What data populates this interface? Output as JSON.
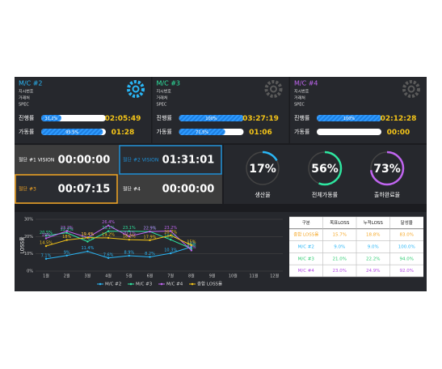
{
  "machines": [
    {
      "name": "M/C #2",
      "color": "#29b6f6",
      "icon_color": "#29b6f6",
      "info": [
        "지시번호",
        "거래처",
        "SPEC"
      ],
      "progress_label": "진행률",
      "progress": 31.2,
      "progress_text": "31.2%",
      "progress_time": "02:05:49",
      "uptime_label": "가동률",
      "uptime": 95.5,
      "uptime_text": "95.5%",
      "uptime_time": "01:28"
    },
    {
      "name": "M/C #3",
      "color": "#2ee6a0",
      "icon_color": "#5a5a5a",
      "info": [
        "지시번호",
        "거래처",
        "SPEC"
      ],
      "progress_label": "진행률",
      "progress": 100,
      "progress_text": "100%",
      "progress_time": "03:27:19",
      "uptime_label": "가동률",
      "uptime": 71.5,
      "uptime_text": "71.5%",
      "uptime_time": "01:06"
    },
    {
      "name": "M/C #4",
      "color": "#c065f0",
      "icon_color": "#5a5a5a",
      "info": [
        "지시번호",
        "거래처",
        "SPEC"
      ],
      "progress_label": "진행률",
      "progress": 100,
      "progress_text": "100%",
      "progress_time": "02:12:28",
      "uptime_label": "가동률",
      "uptime": 0,
      "uptime_time": "00:00"
    }
  ],
  "cutters": [
    {
      "label": "절단 #1 VISION",
      "time": "00:00:00"
    },
    {
      "label": "절단 #2 VISION",
      "time": "01:31:01",
      "border": "#1e8fd6"
    },
    {
      "label": "절단 #3",
      "time": "00:07:15",
      "border": "#f5a623"
    },
    {
      "label": "절단 #4",
      "time": "00:00:00"
    }
  ],
  "gauges": [
    {
      "value": 17,
      "label": "17%",
      "name": "생산율",
      "color": "#29b6f6"
    },
    {
      "value": 56,
      "label": "56%",
      "name": "전체가동률",
      "color": "#2ee6a0"
    },
    {
      "value": 73,
      "label": "73%",
      "name": "출하완료율",
      "color": "#c065f0"
    }
  ],
  "chart_data": {
    "type": "line",
    "y_label": "LOSS율",
    "categories": [
      "1월",
      "2월",
      "3월",
      "4월",
      "5월",
      "6월",
      "7월",
      "8월",
      "9월",
      "10월",
      "11월",
      "12월"
    ],
    "ylim": [
      0,
      30
    ],
    "yticks": [
      {
        "value": 0,
        "label": "0%"
      },
      {
        "value": 10,
        "label": "10%"
      },
      {
        "value": 20,
        "label": "20%"
      },
      {
        "value": 30,
        "label": "30%"
      }
    ],
    "grid": true,
    "series": [
      {
        "name": "M/C #2",
        "color": "#29b6f6",
        "values": [
          7.1,
          9,
          11.4,
          7.6,
          8.9,
          8.2,
          10.3,
          14,
          null,
          null,
          null,
          null
        ],
        "value_labels": [
          "7.1%",
          "9%",
          "11.4%",
          "7.6%",
          "8.9%",
          "8.2%",
          "10.3%",
          "14%",
          null,
          null,
          null,
          null
        ]
      },
      {
        "name": "M/C #3",
        "color": "#2ee6a0",
        "values": [
          20.5,
          22.2,
          17.1,
          23.1,
          23.1,
          22.9,
          18.2,
          13,
          null,
          null,
          null,
          null
        ],
        "value_labels": [
          "20.5%",
          "22.2%",
          "17.1%",
          "23.1%",
          "23.1%",
          "22.9%",
          "18.2%",
          "13%",
          null,
          null,
          null,
          null
        ]
      },
      {
        "name": "M/C #4",
        "color": "#c065f0",
        "values": [
          19,
          23.2,
          19.4,
          26.4,
          20.1,
          22.9,
          23.2,
          12,
          null,
          null,
          null,
          null
        ],
        "value_labels": [
          "19%",
          "23.2%",
          "19.4%",
          "26.4%",
          "20.1%",
          "22.9%",
          "23.2%",
          "12%",
          null,
          null,
          null,
          null
        ]
      },
      {
        "name": "종합 LOSS율",
        "color": "#f5c518",
        "values": [
          14.5,
          18,
          19.4,
          19.2,
          18.2,
          17.9,
          20.7,
          15,
          null,
          null,
          null,
          null
        ],
        "value_labels": [
          "14.5%",
          "18%",
          "19.4%",
          "19.2%",
          "18.2%",
          "17.9%",
          "20.7%",
          "15%",
          null,
          null,
          null,
          null
        ]
      }
    ]
  },
  "table": {
    "header": [
      "구분",
      "목표LOSS",
      "누적LOSS",
      "달성율"
    ],
    "rows": [
      [
        "종합 LOSS율",
        "15.7%",
        "18.8%",
        "83.0%"
      ],
      [
        "M/C #2",
        "9.0%",
        "9.0%",
        "100.0%"
      ],
      [
        "M/C #3",
        "21.0%",
        "22.2%",
        "94.0%"
      ],
      [
        "M/C #4",
        "23.0%",
        "24.9%",
        "92.0%"
      ]
    ],
    "row_colors": [
      "#f5a623",
      "#29b6f6",
      "#2ecc71",
      "#b44de6"
    ]
  }
}
